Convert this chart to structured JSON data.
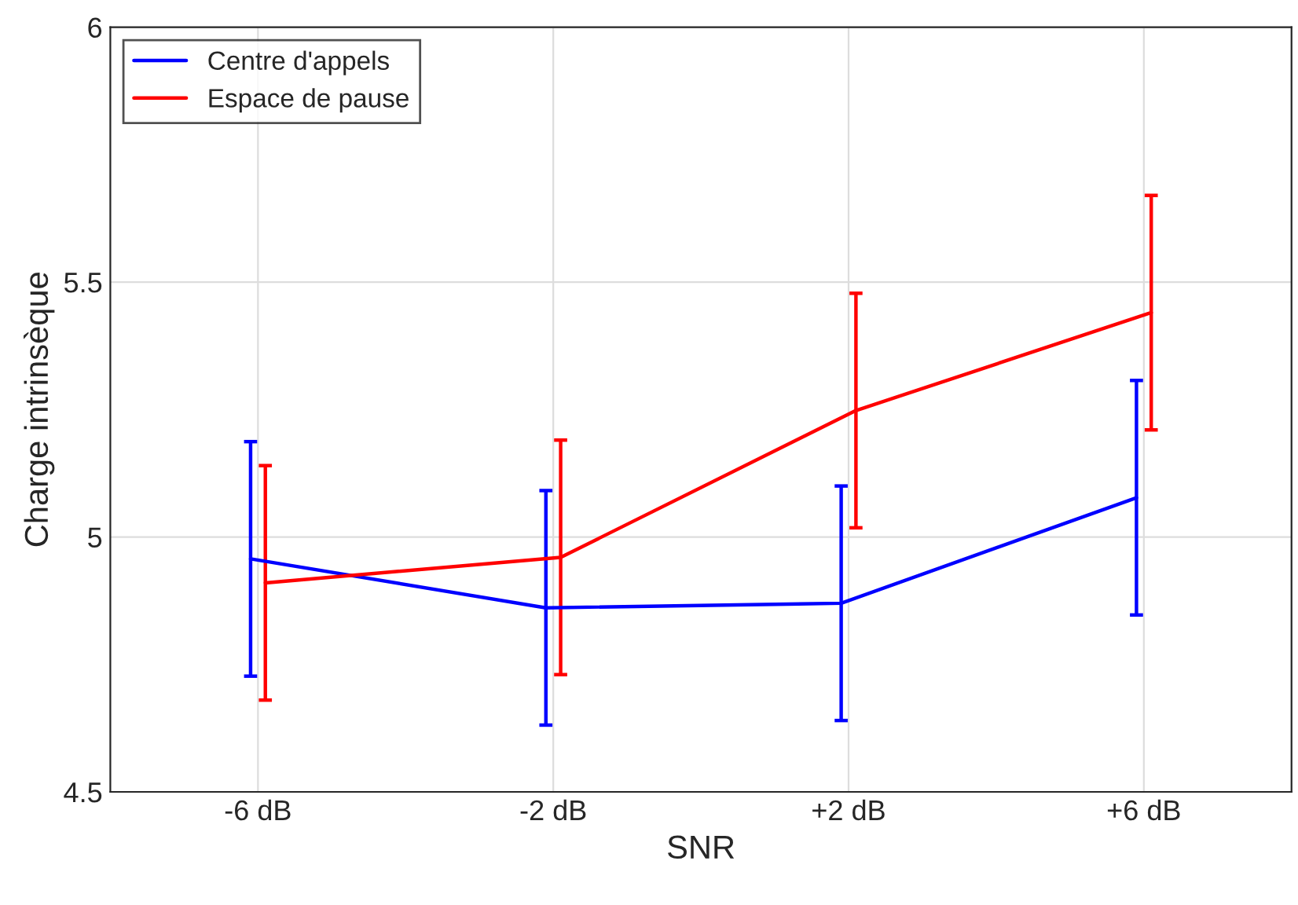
{
  "chart_data": {
    "type": "line",
    "xlabel": "SNR",
    "ylabel": "Charge intrinsèque",
    "categories": [
      "-6 dB",
      "-2 dB",
      "+2 dB",
      "+6 dB"
    ],
    "series": [
      {
        "name": "Centre d'appels",
        "color": "#0000ff",
        "values": [
          4.957,
          4.861,
          4.87,
          5.077
        ],
        "errors": [
          0.23,
          0.23,
          0.23,
          0.23
        ]
      },
      {
        "name": "Espace de pause",
        "color": "#ff0000",
        "values": [
          4.91,
          4.96,
          5.248,
          5.44
        ],
        "errors": [
          0.23,
          0.23,
          0.23,
          0.23
        ]
      }
    ],
    "ylim": [
      4.5,
      6
    ],
    "yticks": [
      4.5,
      5,
      5.5,
      6
    ],
    "grid": true,
    "legend": "top left",
    "marker": "none",
    "line_style": "solid"
  }
}
